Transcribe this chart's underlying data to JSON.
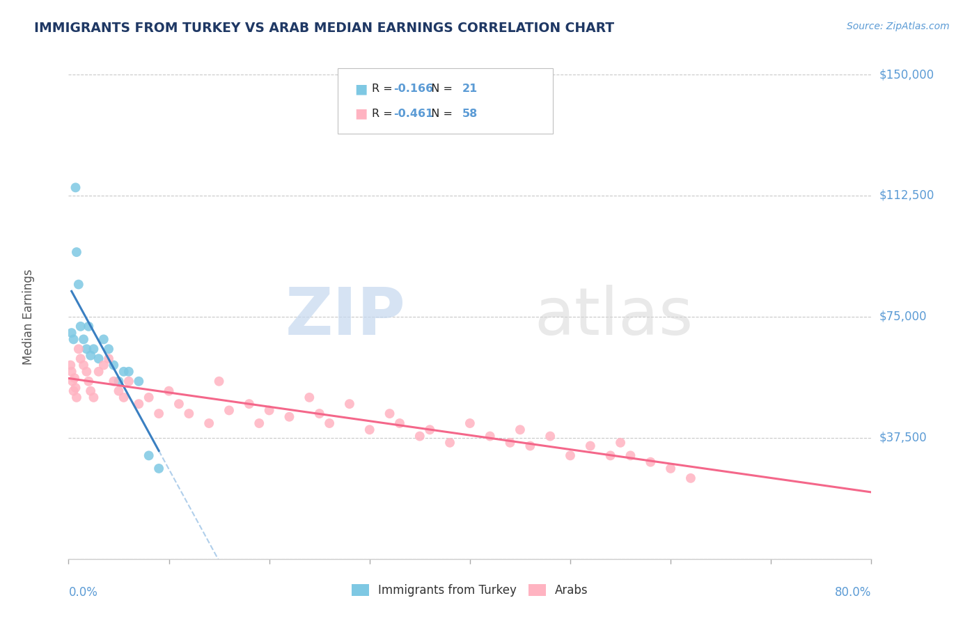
{
  "title": "IMMIGRANTS FROM TURKEY VS ARAB MEDIAN EARNINGS CORRELATION CHART",
  "source": "Source: ZipAtlas.com",
  "ylabel": "Median Earnings",
  "yticks": [
    0,
    37500,
    75000,
    112500,
    150000
  ],
  "ytick_labels": [
    "",
    "$37,500",
    "$75,000",
    "$112,500",
    "$150,000"
  ],
  "xmin": 0.0,
  "xmax": 80.0,
  "ymin": 0,
  "ymax": 150000,
  "color_turkey": "#7ec8e3",
  "color_arab": "#ffb3c1",
  "color_trendline_turkey": "#3a7fc1",
  "color_trendline_arab": "#f4678a",
  "color_dashed": "#9dc3e6",
  "color_axis_labels": "#5b9bd5",
  "color_title": "#1f3864",
  "color_grid": "#c8c8c8",
  "watermark_zip": "ZIP",
  "watermark_atlas": "atlas",
  "legend_text_r": "R = ",
  "legend_r1_val": "-0.166",
  "legend_n1": "N = ",
  "legend_n1_val": "21",
  "legend_r2_val": "-0.461",
  "legend_n2_val": "58",
  "turkey_x": [
    0.3,
    0.5,
    0.7,
    0.8,
    1.0,
    1.2,
    1.5,
    1.8,
    2.0,
    2.2,
    2.5,
    3.0,
    3.5,
    4.0,
    4.5,
    5.0,
    5.5,
    6.0,
    7.0,
    8.0,
    9.0
  ],
  "turkey_y": [
    70000,
    68000,
    115000,
    95000,
    85000,
    72000,
    68000,
    65000,
    72000,
    63000,
    65000,
    62000,
    68000,
    65000,
    60000,
    55000,
    58000,
    58000,
    55000,
    32000,
    28000
  ],
  "arab_x": [
    0.2,
    0.3,
    0.4,
    0.5,
    0.6,
    0.7,
    0.8,
    1.0,
    1.2,
    1.5,
    1.8,
    2.0,
    2.2,
    2.5,
    3.0,
    3.5,
    4.0,
    4.5,
    5.0,
    5.5,
    6.0,
    7.0,
    8.0,
    9.0,
    10.0,
    11.0,
    12.0,
    14.0,
    15.0,
    16.0,
    18.0,
    19.0,
    20.0,
    22.0,
    24.0,
    25.0,
    26.0,
    28.0,
    30.0,
    32.0,
    33.0,
    35.0,
    36.0,
    38.0,
    40.0,
    42.0,
    44.0,
    45.0,
    46.0,
    48.0,
    50.0,
    52.0,
    54.0,
    55.0,
    56.0,
    58.0,
    60.0,
    62.0
  ],
  "arab_y": [
    60000,
    58000,
    55000,
    52000,
    56000,
    53000,
    50000,
    65000,
    62000,
    60000,
    58000,
    55000,
    52000,
    50000,
    58000,
    60000,
    62000,
    55000,
    52000,
    50000,
    55000,
    48000,
    50000,
    45000,
    52000,
    48000,
    45000,
    42000,
    55000,
    46000,
    48000,
    42000,
    46000,
    44000,
    50000,
    45000,
    42000,
    48000,
    40000,
    45000,
    42000,
    38000,
    40000,
    36000,
    42000,
    38000,
    36000,
    40000,
    35000,
    38000,
    32000,
    35000,
    32000,
    36000,
    32000,
    30000,
    28000,
    25000
  ]
}
